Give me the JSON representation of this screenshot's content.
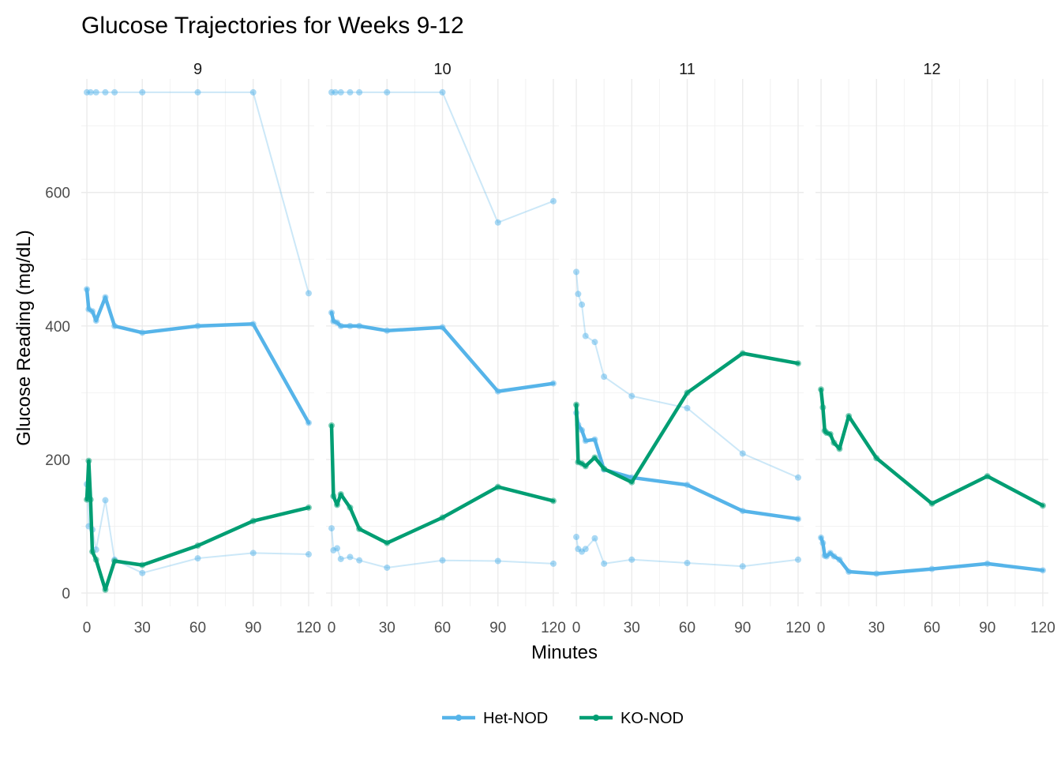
{
  "chart_data": {
    "type": "line",
    "title": "Glucose Trajectories for Weeks 9-12",
    "xlabel": "Minutes",
    "ylabel": "Glucose Reading (mg/dL)",
    "xlim": [
      -3,
      123
    ],
    "ylim": [
      -20,
      770
    ],
    "x_ticks": [
      0,
      30,
      60,
      90,
      120
    ],
    "y_ticks": [
      0,
      200,
      400,
      600
    ],
    "grid": true,
    "legend_position": "bottom",
    "colors": {
      "Het-NOD": "#56B4E9",
      "KO-NOD": "#009E73"
    },
    "legend": [
      {
        "label": "Het-NOD",
        "color": "#56B4E9"
      },
      {
        "label": "KO-NOD",
        "color": "#009E73"
      }
    ],
    "panels": [
      {
        "label": "9",
        "series": [
          {
            "group": "Het-NOD",
            "kind": "individual",
            "x": [
              0,
              2,
              5,
              10,
              15,
              30,
              60,
              90,
              120
            ],
            "y": [
              750,
              750,
              750,
              750,
              750,
              750,
              750,
              750,
              449
            ]
          },
          {
            "group": "Het-NOD",
            "kind": "individual",
            "x": [
              0,
              1,
              3,
              5,
              10,
              15,
              30,
              60,
              90,
              120
            ],
            "y": [
              163,
              100,
              95,
              65,
              139,
              50,
              30,
              52,
              60,
              58
            ]
          },
          {
            "group": "Het-NOD",
            "kind": "mean",
            "x": [
              0,
              1,
              3,
              5,
              10,
              15,
              30,
              60,
              90,
              120
            ],
            "y": [
              455,
              425,
              422,
              408,
              443,
              400,
              390,
              400,
              403,
              255
            ]
          },
          {
            "group": "KO-NOD",
            "kind": "mean",
            "x": [
              0,
              1,
              2,
              3,
              5,
              10,
              15,
              30,
              60,
              90,
              120
            ],
            "y": [
              140,
              198,
              140,
              62,
              50,
              5,
              48,
              42,
              71,
              108,
              128
            ]
          }
        ]
      },
      {
        "label": "10",
        "series": [
          {
            "group": "Het-NOD",
            "kind": "individual",
            "x": [
              0,
              2,
              5,
              10,
              15,
              30,
              60,
              90,
              120
            ],
            "y": [
              750,
              750,
              750,
              750,
              750,
              750,
              750,
              555,
              587
            ]
          },
          {
            "group": "Het-NOD",
            "kind": "individual",
            "x": [
              0,
              1,
              3,
              5,
              10,
              15,
              30,
              60,
              90,
              120
            ],
            "y": [
              97,
              64,
              67,
              51,
              54,
              49,
              38,
              49,
              48,
              44
            ]
          },
          {
            "group": "Het-NOD",
            "kind": "mean",
            "x": [
              0,
              1,
              3,
              5,
              10,
              15,
              30,
              60,
              90,
              120
            ],
            "y": [
              420,
              407,
              405,
              400,
              400,
              400,
              393,
              398,
              302,
              314
            ]
          },
          {
            "group": "KO-NOD",
            "kind": "mean",
            "x": [
              0,
              1,
              3,
              5,
              10,
              15,
              30,
              60,
              90,
              120
            ],
            "y": [
              251,
              145,
              132,
              148,
              128,
              96,
              75,
              113,
              159,
              138
            ]
          }
        ]
      },
      {
        "label": "11",
        "series": [
          {
            "group": "Het-NOD",
            "kind": "individual",
            "x": [
              0,
              1,
              3,
              5,
              10,
              15,
              30,
              60,
              90,
              120
            ],
            "y": [
              481,
              448,
              432,
              385,
              376,
              324,
              295,
              277,
              209,
              173
            ]
          },
          {
            "group": "Het-NOD",
            "kind": "individual",
            "x": [
              0,
              1,
              3,
              5,
              10,
              15,
              30,
              60,
              90,
              120
            ],
            "y": [
              84,
              66,
              62,
              66,
              82,
              44,
              50,
              45,
              40,
              50
            ]
          },
          {
            "group": "Het-NOD",
            "kind": "mean",
            "x": [
              0,
              1,
              3,
              5,
              10,
              15,
              30,
              60,
              90,
              120
            ],
            "y": [
              270,
              252,
              244,
              228,
              230,
              185,
              173,
              162,
              123,
              111
            ]
          },
          {
            "group": "KO-NOD",
            "kind": "mean",
            "x": [
              0,
              1,
              3,
              5,
              10,
              15,
              30,
              60,
              90,
              120
            ],
            "y": [
              282,
              196,
              194,
              190,
              203,
              186,
              166,
              300,
              359,
              344
            ]
          }
        ]
      },
      {
        "label": "12",
        "series": [
          {
            "group": "Het-NOD",
            "kind": "mean",
            "x": [
              0,
              1,
              2,
              3,
              5,
              7,
              10,
              15,
              30,
              60,
              90,
              120
            ],
            "y": [
              83,
              75,
              56,
              55,
              60,
              55,
              50,
              32,
              29,
              36,
              44,
              34
            ]
          },
          {
            "group": "KO-NOD",
            "kind": "mean",
            "x": [
              0,
              1,
              2,
              3,
              5,
              7,
              10,
              15,
              30,
              60,
              90,
              120
            ],
            "y": [
              305,
              278,
              243,
              240,
              238,
              225,
              216,
              265,
              202,
              134,
              175,
              131
            ]
          }
        ]
      }
    ]
  }
}
